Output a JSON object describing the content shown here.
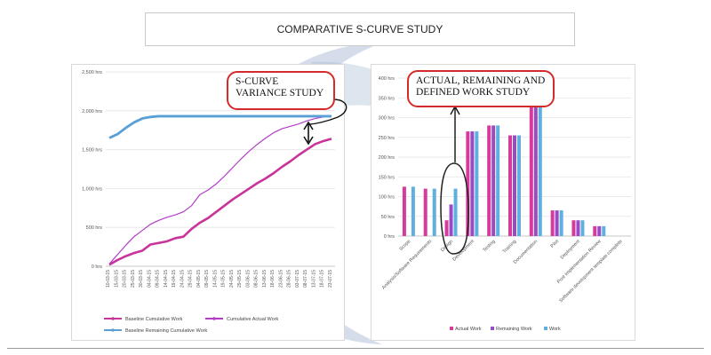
{
  "page": {
    "title": "COMPARATIVE S-CURVE STUDY",
    "callout_left": [
      "S-CURVE",
      "VARIANCE STUDY"
    ],
    "callout_right": [
      "ACTUAL, REMAINING AND",
      "DEFINED WORK STUDY"
    ]
  },
  "colors": {
    "baseline": "#c8349a",
    "actual": "#b23cc8",
    "remaining": "#5aa0d6",
    "actual_work_bar": "#d63b9b",
    "remaining_work_bar": "#9b49c4",
    "work_bar": "#5fb0de",
    "callout_border": "#d42a2a"
  },
  "chart_data": [
    {
      "type": "line",
      "title": "",
      "xlabel": "",
      "ylabel": "",
      "ylim": [
        0,
        2500
      ],
      "y_ticks": [
        "0 hrs",
        "500 hrs",
        "1,000 hrs",
        "1,500 hrs",
        "2,000 hrs",
        "2,500 hrs"
      ],
      "x": [
        "10-03-15",
        "15-03-15",
        "20-03-15",
        "25-03-15",
        "30-03-15",
        "04-04-15",
        "09-04-15",
        "14-04-15",
        "19-04-15",
        "24-04-15",
        "29-04-15",
        "04-05-15",
        "09-05-15",
        "14-05-15",
        "19-05-15",
        "24-05-15",
        "29-05-15",
        "03-06-15",
        "08-06-15",
        "13-06-15",
        "18-06-15",
        "23-06-15",
        "28-06-15",
        "03-07-15",
        "08-07-15",
        "13-07-15",
        "18-07-15",
        "23-07-15"
      ],
      "legend_position": "bottom",
      "series": [
        {
          "name": "Baseline Cumulative Work",
          "values": [
            20,
            80,
            130,
            170,
            200,
            280,
            300,
            320,
            360,
            380,
            480,
            560,
            620,
            700,
            780,
            860,
            930,
            1000,
            1070,
            1130,
            1200,
            1280,
            1350,
            1430,
            1500,
            1570,
            1610,
            1640
          ]
        },
        {
          "name": "Cumulative Actual Work",
          "values": [
            30,
            150,
            270,
            380,
            460,
            540,
            590,
            630,
            660,
            700,
            780,
            920,
            980,
            1060,
            1160,
            1270,
            1380,
            1480,
            1570,
            1650,
            1720,
            1770,
            1800,
            1830,
            1870,
            1900,
            1920,
            1940
          ]
        },
        {
          "name": "Baseline Remaining Cumulative Work",
          "values": [
            1650,
            1700,
            1780,
            1850,
            1900,
            1920,
            1930,
            1930,
            1930,
            1930,
            1930,
            1930,
            1930,
            1930,
            1930,
            1930,
            1930,
            1930,
            1930,
            1930,
            1930,
            1930,
            1930,
            1930,
            1930,
            1930,
            1930,
            1930
          ]
        }
      ]
    },
    {
      "type": "bar",
      "title": "",
      "xlabel": "",
      "ylabel": "",
      "ylim": [
        0,
        400
      ],
      "y_ticks": [
        "0 hrs",
        "50 hrs",
        "100 hrs",
        "150 hrs",
        "200 hrs",
        "250 hrs",
        "300 hrs",
        "350 hrs",
        "400 hrs"
      ],
      "categories": [
        "Scope",
        "Analysis/Software Requirements",
        "Design",
        "Development",
        "Testing",
        "Training",
        "Documentation",
        "Pilot",
        "Deployment",
        "Post Implementation Review",
        "Software development template complete"
      ],
      "legend_position": "bottom",
      "series": [
        {
          "name": "Actual Work",
          "values": [
            125,
            120,
            40,
            265,
            280,
            255,
            335,
            65,
            40,
            25,
            0
          ]
        },
        {
          "name": "Remaining Work",
          "values": [
            0,
            0,
            80,
            265,
            280,
            255,
            335,
            65,
            40,
            25,
            0
          ]
        },
        {
          "name": "Work",
          "values": [
            125,
            120,
            120,
            265,
            280,
            255,
            335,
            65,
            40,
            25,
            0
          ]
        }
      ]
    }
  ]
}
